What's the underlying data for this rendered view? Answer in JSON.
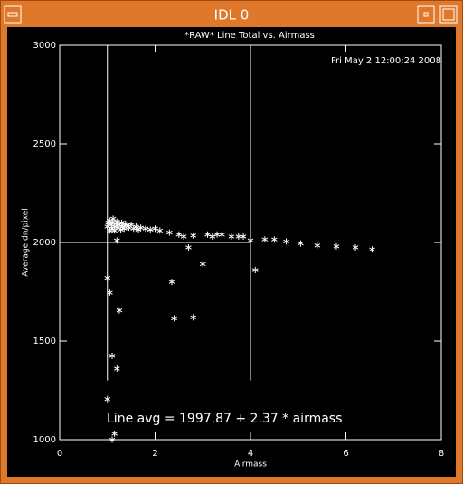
{
  "window_title": "IDL 0",
  "chart_data": {
    "type": "scatter",
    "title": "*RAW* Line Total vs. Airmass",
    "timestamp": "Fri May  2 12:00:24 2008",
    "x_label": "Airmass",
    "y_label": "Average dn/pixel",
    "annotation": "Line avg = 1997.87 + 2.37 * airmass",
    "xlim": [
      0,
      8
    ],
    "ylim": [
      1000,
      3000
    ],
    "xticks": [
      0,
      2,
      4,
      6,
      8
    ],
    "yticks": [
      1000,
      1500,
      2000,
      2500,
      3000
    ],
    "vlines": [
      1,
      4
    ],
    "vline_ylim": [
      1300,
      3000
    ],
    "hline": 2000,
    "hline_xlim": [
      0,
      4
    ],
    "series": [
      {
        "color": "#ffffff",
        "x": [
          1.0,
          1.02,
          1.05,
          1.05,
          1.08,
          1.1,
          1.1,
          1.12,
          1.15,
          1.15,
          1.18,
          1.2,
          1.22,
          1.25,
          1.28,
          1.3,
          1.32,
          1.35,
          1.38,
          1.4,
          1.45,
          1.5,
          1.55,
          1.6,
          1.65,
          1.7,
          1.8,
          1.9,
          2.0,
          2.1,
          2.3,
          2.5,
          2.6,
          2.7,
          2.8,
          3.0,
          3.1,
          3.2,
          3.3,
          3.4,
          3.6,
          3.75,
          3.85,
          4.0,
          4.1,
          4.3,
          4.5,
          4.75,
          5.05,
          5.4,
          5.8,
          6.2,
          6.55,
          1.0,
          1.05,
          1.25,
          1.1,
          1.2,
          1.0,
          1.15,
          1.1,
          2.35,
          2.4,
          2.8,
          1.2
        ],
        "y": [
          2080,
          2100,
          2060,
          2110,
          2090,
          2070,
          2100,
          2120,
          2080,
          2060,
          2095,
          2105,
          2075,
          2090,
          2065,
          2100,
          2080,
          2070,
          2095,
          2085,
          2075,
          2090,
          2070,
          2080,
          2065,
          2075,
          2070,
          2065,
          2070,
          2060,
          2050,
          2040,
          2030,
          1975,
          2035,
          1890,
          2040,
          2030,
          2040,
          2040,
          2030,
          2030,
          2030,
          2010,
          1860,
          2015,
          2015,
          2005,
          1995,
          1985,
          1980,
          1975,
          1965,
          1820,
          1745,
          1655,
          1425,
          1360,
          1205,
          1030,
          1000,
          1800,
          1615,
          1620,
          2010
        ]
      }
    ]
  }
}
